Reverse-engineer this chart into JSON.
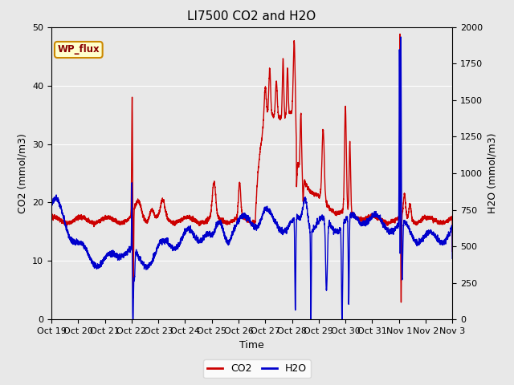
{
  "title": "LI7500 CO2 and H2O",
  "xlabel": "Time",
  "ylabel_left": "CO2 (mmol/m3)",
  "ylabel_right": "H2O (mmol/m3)",
  "xlim": [
    0,
    360
  ],
  "ylim_left": [
    0,
    50
  ],
  "ylim_right": [
    0,
    2000
  ],
  "xtick_positions": [
    0,
    24,
    48,
    72,
    96,
    120,
    144,
    168,
    192,
    216,
    240,
    264,
    288,
    312,
    336,
    360
  ],
  "xtick_labels": [
    "Oct 19",
    "Oct 20",
    "Oct 21",
    "Oct 22",
    "Oct 23",
    "Oct 24",
    "Oct 25",
    "Oct 26",
    "Oct 27",
    "Oct 28",
    "Oct 29",
    "Oct 30",
    "Oct 31",
    "Nov 1",
    "Nov 2",
    "Nov 3"
  ],
  "co2_color": "#cc0000",
  "h2o_color": "#0000cc",
  "fig_bg_color": "#e8e8e8",
  "plot_bg_color": "#e8e8e8",
  "grid_color": "#ffffff",
  "legend_box_facecolor": "#ffffcc",
  "legend_box_edgecolor": "#cc8800",
  "wp_flux_label": "WP_flux",
  "legend_co2": "CO2",
  "legend_h2o": "H2O",
  "title_fontsize": 11,
  "axis_fontsize": 9,
  "tick_fontsize": 8,
  "legend_fontsize": 9,
  "linewidth": 1.0
}
